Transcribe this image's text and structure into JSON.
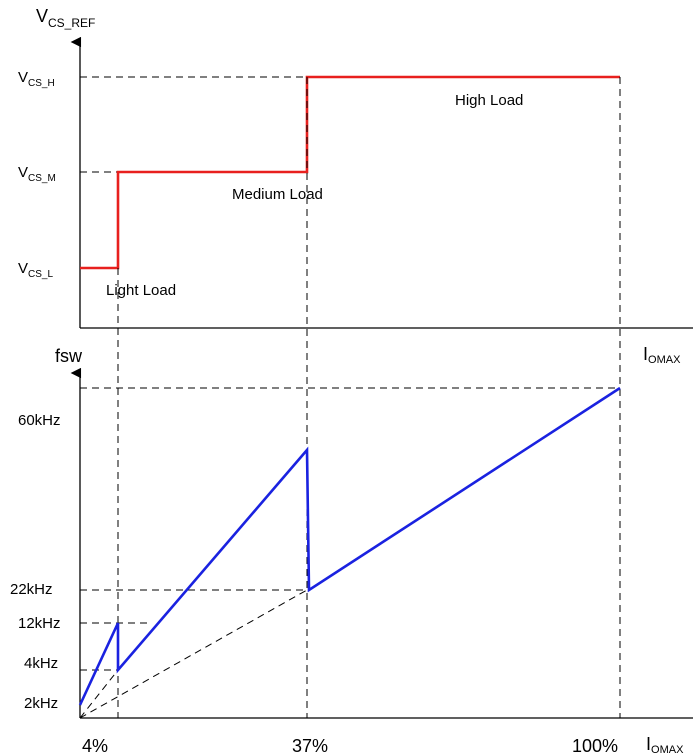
{
  "top_chart": {
    "y_axis": {
      "main": "V",
      "sub": "CS_REF"
    },
    "levels": [
      {
        "main": "V",
        "sub": "CS_H"
      },
      {
        "main": "V",
        "sub": "CS_M"
      },
      {
        "main": "V",
        "sub": "CS_L"
      }
    ],
    "regions": {
      "light": "Light Load",
      "medium": "Medium Load",
      "high": "High Load"
    },
    "x_axis": {
      "main": "I",
      "sub": "OMAX"
    }
  },
  "bottom_chart": {
    "y_axis": "fsw",
    "y_ticks": [
      "60kHz",
      "22kHz",
      "12kHz",
      "4kHz",
      "2kHz"
    ],
    "x_ticks": [
      "4%",
      "37%",
      "100%"
    ],
    "x_axis": {
      "main": "I",
      "sub": "OMAX"
    }
  },
  "colors": {
    "current_ref": "#e8201e",
    "frequency": "#1a22e0"
  }
}
